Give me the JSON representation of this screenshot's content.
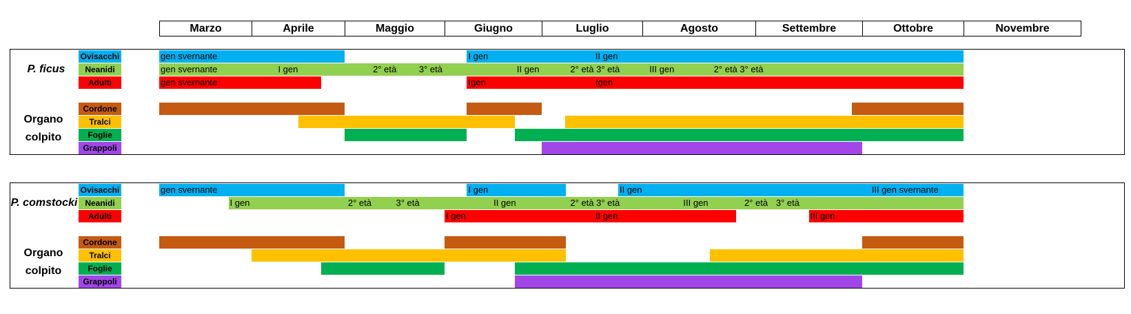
{
  "colors": {
    "Ovisacchi": "#00B0F0",
    "Neanidi": "#92D050",
    "Adulti": "#FF0000",
    "Cordone": "#C55A11",
    "Tralci": "#FFC000",
    "Foglie": "#00B050",
    "Grappoli": "#A246E8"
  },
  "chart_data": {
    "type": "gantt",
    "x_unit": "month position (0 = start of Marzo, 9 = end of Novembre)",
    "months": [
      "Marzo",
      "Aprile",
      "Maggio",
      "Giugno",
      "Luglio",
      "Agosto",
      "Settembre",
      "Ottobre",
      "Novembre"
    ],
    "panels": [
      {
        "species": "P. ficus",
        "organo_label": [
          "Organo",
          "colpito"
        ],
        "stage_rows": [
          {
            "name": "Ovisacchi",
            "bars": [
              [
                0,
                2
              ],
              [
                3.23,
                8
              ]
            ],
            "labels": [
              {
                "x": 0,
                "text": "gen svernante"
              },
              {
                "x": 3.23,
                "text": "I gen"
              },
              {
                "x": 4.52,
                "text": "II gen"
              }
            ]
          },
          {
            "name": "Neanidi",
            "bars": [
              [
                0,
                8
              ]
            ],
            "labels": [
              {
                "x": 0,
                "text": "gen svernante"
              },
              {
                "x": 1.27,
                "text": "I gen"
              },
              {
                "x": 2.27,
                "text": "2° età"
              },
              {
                "x": 2.73,
                "text": "3° età"
              },
              {
                "x": 3.73,
                "text": "II gen"
              },
              {
                "x": 4.27,
                "text": "2° età 3° età"
              },
              {
                "x": 5.05,
                "text": "III gen"
              },
              {
                "x": 5.62,
                "text": "2° età 3° età"
              }
            ]
          },
          {
            "name": "Adulti",
            "bars": [
              [
                0,
                1.75
              ],
              [
                3.23,
                8
              ]
            ],
            "labels": [
              {
                "x": 0,
                "text": "gen svernante"
              },
              {
                "x": 3.23,
                "text": "Igen"
              },
              {
                "x": 4.52,
                "text": "Igen"
              }
            ]
          }
        ],
        "organ_rows": [
          {
            "name": "Cordone",
            "bars": [
              [
                0,
                2
              ],
              [
                3.23,
                4
              ]
            ]
          },
          {
            "name": "Tralci",
            "bars": [
              [
                1.5,
                3.72
              ],
              [
                4.23,
                8
              ]
            ]
          },
          {
            "name": "Foglie",
            "bars": [
              [
                2,
                3.23
              ],
              [
                3.72,
                8
              ]
            ]
          },
          {
            "name": "Grappoli",
            "bars": [
              [
                4,
                7
              ]
            ]
          }
        ],
        "organ_extra": [
          {
            "row": "Cordone",
            "bar": [
              6.9,
              8
            ]
          }
        ]
      },
      {
        "species": "P. comstocki",
        "organo_label": [
          "Organo",
          "colpito"
        ],
        "stage_rows": [
          {
            "name": "Ovisacchi",
            "bars": [
              [
                0,
                2
              ],
              [
                3.23,
                4.24
              ],
              [
                4.76,
                8
              ]
            ],
            "labels": [
              {
                "x": 0,
                "text": "gen svernante"
              },
              {
                "x": 3.23,
                "text": "I gen"
              },
              {
                "x": 4.76,
                "text": "II gen"
              },
              {
                "x": 7.08,
                "text": "III gen svernante"
              }
            ]
          },
          {
            "name": "Neanidi",
            "bars": [
              [
                0.75,
                8
              ]
            ],
            "labels": [
              {
                "x": 0.75,
                "text": "I gen"
              },
              {
                "x": 2.02,
                "text": "2° età"
              },
              {
                "x": 2.5,
                "text": "3° età"
              },
              {
                "x": 3.49,
                "text": "II gen"
              },
              {
                "x": 4.27,
                "text": "2° età 3° età"
              },
              {
                "x": 5.35,
                "text": "III gen"
              },
              {
                "x": 5.89,
                "text": "2° età"
              },
              {
                "x": 6.18,
                "text": "3° età"
              }
            ]
          },
          {
            "name": "Adulti",
            "bars": [
              [
                3,
                5.83
              ],
              [
                6.5,
                8
              ]
            ],
            "labels": [
              {
                "x": 3,
                "text": "I gen"
              },
              {
                "x": 4.52,
                "text": "II gen"
              },
              {
                "x": 6.5,
                "text": "III gen"
              }
            ]
          }
        ],
        "organ_rows": [
          {
            "name": "Cordone",
            "bars": [
              [
                0,
                2
              ],
              [
                3,
                4.24
              ],
              [
                7,
                8
              ]
            ]
          },
          {
            "name": "Tralci",
            "bars": [
              [
                1,
                4.24
              ],
              [
                5.6,
                8
              ]
            ]
          },
          {
            "name": "Foglie",
            "bars": [
              [
                1.75,
                3
              ],
              [
                3.72,
                8
              ]
            ]
          },
          {
            "name": "Grappoli",
            "bars": [
              [
                3.72,
                7
              ]
            ]
          }
        ]
      }
    ]
  }
}
